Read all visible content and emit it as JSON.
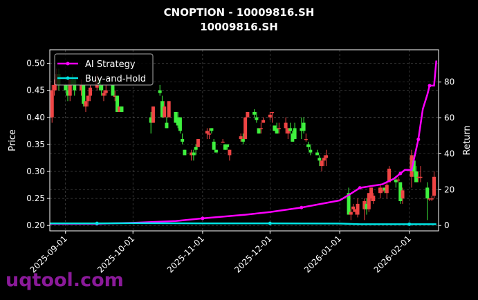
{
  "chart_data": {
    "type": "candlestick+line",
    "title": "CNOPTION - 10009816.SH",
    "subtitle": "10009816.SH",
    "ylabel": "Price",
    "y2label": "Return",
    "ylim": [
      0.19,
      0.525
    ],
    "y2lim": [
      -3,
      98
    ],
    "yticks": [
      "0.20",
      "0.25",
      "0.30",
      "0.35",
      "0.40",
      "0.45",
      "0.50"
    ],
    "y2ticks": [
      "0",
      "20",
      "40",
      "60",
      "80"
    ],
    "xticks": [
      "2025-09-01",
      "2025-10-01",
      "2025-11-01",
      "2025-12-01",
      "2026-01-01",
      "2026-02-01"
    ],
    "xlim": [
      "2025-08-25",
      "2026-02-14"
    ],
    "grid": true,
    "legend_position": "top-left",
    "colors": {
      "up": "#ef4444",
      "down": "#3ef03e",
      "ai": "#ff00ff",
      "bh": "#00e5e5"
    },
    "candles_columns": [
      "date",
      "open",
      "high",
      "low",
      "close"
    ],
    "candles": [
      [
        "2025-08-26",
        0.4,
        0.46,
        0.39,
        0.45
      ],
      [
        "2025-08-27",
        0.45,
        0.47,
        0.44,
        0.46
      ],
      [
        "2025-08-28",
        0.46,
        0.49,
        0.45,
        0.48
      ],
      [
        "2025-08-29",
        0.48,
        0.49,
        0.45,
        0.46
      ],
      [
        "2025-09-01",
        0.46,
        0.46,
        0.45,
        0.45
      ],
      [
        "2025-09-02",
        0.45,
        0.46,
        0.43,
        0.44
      ],
      [
        "2025-09-03",
        0.44,
        0.47,
        0.43,
        0.47
      ],
      [
        "2025-09-04",
        0.47,
        0.48,
        0.46,
        0.46
      ],
      [
        "2025-09-05",
        0.47,
        0.47,
        0.44,
        0.45
      ],
      [
        "2025-09-08",
        0.45,
        0.47,
        0.44,
        0.46
      ],
      [
        "2025-09-09",
        0.46,
        0.46,
        0.42,
        0.425
      ],
      [
        "2025-09-10",
        0.42,
        0.43,
        0.41,
        0.43
      ],
      [
        "2025-09-11",
        0.43,
        0.44,
        0.42,
        0.44
      ],
      [
        "2025-09-12",
        0.44,
        0.46,
        0.43,
        0.455
      ],
      [
        "2025-09-15",
        0.455,
        0.48,
        0.45,
        0.47
      ],
      [
        "2025-09-16",
        0.47,
        0.47,
        0.45,
        0.46
      ],
      [
        "2025-09-17",
        0.46,
        0.46,
        0.44,
        0.45
      ],
      [
        "2025-09-18",
        0.44,
        0.45,
        0.43,
        0.445
      ],
      [
        "2025-09-19",
        0.445,
        0.46,
        0.44,
        0.45
      ],
      [
        "2025-09-22",
        0.46,
        0.46,
        0.44,
        0.44
      ],
      [
        "2025-09-23",
        0.44,
        0.45,
        0.43,
        0.44
      ],
      [
        "2025-09-24",
        0.44,
        0.44,
        0.41,
        0.41
      ],
      [
        "2025-09-25",
        0.41,
        0.42,
        0.41,
        0.42
      ],
      [
        "2025-09-26",
        0.42,
        0.42,
        0.41,
        0.41
      ],
      [
        "2025-10-09",
        0.4,
        0.41,
        0.37,
        0.39
      ],
      [
        "2025-10-10",
        0.39,
        0.42,
        0.39,
        0.42
      ],
      [
        "2025-10-13",
        0.45,
        0.46,
        0.44,
        0.445
      ],
      [
        "2025-10-14",
        0.43,
        0.44,
        0.4,
        0.4
      ],
      [
        "2025-10-15",
        0.4,
        0.43,
        0.4,
        0.42
      ],
      [
        "2025-10-16",
        0.39,
        0.4,
        0.38,
        0.38
      ],
      [
        "2025-10-17",
        0.4,
        0.43,
        0.4,
        0.43
      ],
      [
        "2025-10-20",
        0.41,
        0.41,
        0.39,
        0.39
      ],
      [
        "2025-10-21",
        0.4,
        0.41,
        0.38,
        0.385
      ],
      [
        "2025-10-22",
        0.4,
        0.4,
        0.37,
        0.375
      ],
      [
        "2025-10-23",
        0.36,
        0.37,
        0.35,
        0.355
      ],
      [
        "2025-10-24",
        0.34,
        0.34,
        0.33,
        0.33
      ],
      [
        "2025-10-27",
        0.33,
        0.34,
        0.32,
        0.335
      ],
      [
        "2025-10-28",
        0.335,
        0.34,
        0.32,
        0.33
      ],
      [
        "2025-10-29",
        0.345,
        0.35,
        0.33,
        0.34
      ],
      [
        "2025-10-30",
        0.345,
        0.36,
        0.345,
        0.36
      ],
      [
        "2025-11-03",
        0.37,
        0.38,
        0.36,
        0.375
      ],
      [
        "2025-11-04",
        0.37,
        0.38,
        0.36,
        0.37
      ],
      [
        "2025-11-05",
        0.38,
        0.38,
        0.37,
        0.375
      ],
      [
        "2025-11-06",
        0.355,
        0.36,
        0.34,
        0.34
      ],
      [
        "2025-11-07",
        0.34,
        0.34,
        0.335,
        0.335
      ],
      [
        "2025-11-10",
        0.355,
        0.36,
        0.355,
        0.355
      ],
      [
        "2025-11-11",
        0.35,
        0.35,
        0.34,
        0.34
      ],
      [
        "2025-11-12",
        0.35,
        0.35,
        0.34,
        0.345
      ],
      [
        "2025-11-13",
        0.33,
        0.34,
        0.32,
        0.34
      ],
      [
        "2025-11-18",
        0.36,
        0.37,
        0.355,
        0.365
      ],
      [
        "2025-11-19",
        0.36,
        0.37,
        0.35,
        0.355
      ],
      [
        "2025-11-20",
        0.36,
        0.4,
        0.36,
        0.4
      ],
      [
        "2025-11-21",
        0.4,
        0.41,
        0.4,
        0.41
      ],
      [
        "2025-11-24",
        0.41,
        0.415,
        0.4,
        0.405
      ],
      [
        "2025-11-25",
        0.4,
        0.41,
        0.39,
        0.395
      ],
      [
        "2025-11-26",
        0.38,
        0.38,
        0.37,
        0.37
      ],
      [
        "2025-11-27",
        0.38,
        0.39,
        0.37,
        0.38
      ],
      [
        "2025-11-28",
        0.39,
        0.4,
        0.39,
        0.395
      ],
      [
        "2025-12-01",
        0.4,
        0.41,
        0.395,
        0.405
      ],
      [
        "2025-12-02",
        0.41,
        0.41,
        0.39,
        0.41
      ],
      [
        "2025-12-03",
        0.385,
        0.385,
        0.375,
        0.375
      ],
      [
        "2025-12-04",
        0.38,
        0.39,
        0.37,
        0.37
      ],
      [
        "2025-12-05",
        0.38,
        0.39,
        0.37,
        0.38
      ],
      [
        "2025-12-08",
        0.38,
        0.4,
        0.37,
        0.39
      ],
      [
        "2025-12-09",
        0.37,
        0.38,
        0.36,
        0.38
      ],
      [
        "2025-12-10",
        0.38,
        0.39,
        0.37,
        0.375
      ],
      [
        "2025-12-11",
        0.37,
        0.375,
        0.355,
        0.355
      ],
      [
        "2025-12-12",
        0.38,
        0.39,
        0.36,
        0.36
      ],
      [
        "2025-12-15",
        0.38,
        0.4,
        0.36,
        0.375
      ],
      [
        "2025-12-16",
        0.39,
        0.4,
        0.37,
        0.375
      ],
      [
        "2025-12-17",
        0.36,
        0.37,
        0.355,
        0.36
      ],
      [
        "2025-12-18",
        0.35,
        0.355,
        0.34,
        0.345
      ],
      [
        "2025-12-19",
        0.34,
        0.35,
        0.33,
        0.335
      ],
      [
        "2025-12-22",
        0.335,
        0.34,
        0.33,
        0.33
      ],
      [
        "2025-12-23",
        0.325,
        0.33,
        0.31,
        0.32
      ],
      [
        "2025-12-24",
        0.31,
        0.32,
        0.3,
        0.32
      ],
      [
        "2025-12-25",
        0.32,
        0.33,
        0.31,
        0.325
      ],
      [
        "2025-12-26",
        0.325,
        0.34,
        0.31,
        0.33
      ],
      [
        "2026-01-05",
        0.26,
        0.27,
        0.22,
        0.22
      ],
      [
        "2026-01-06",
        0.22,
        0.23,
        0.21,
        0.225
      ],
      [
        "2026-01-07",
        0.23,
        0.24,
        0.225,
        0.235
      ],
      [
        "2026-01-08",
        0.225,
        0.23,
        0.22,
        0.23
      ],
      [
        "2026-01-09",
        0.22,
        0.25,
        0.215,
        0.24
      ],
      [
        "2026-01-12",
        0.23,
        0.25,
        0.21,
        0.245
      ],
      [
        "2026-01-13",
        0.24,
        0.25,
        0.22,
        0.23
      ],
      [
        "2026-01-14",
        0.23,
        0.26,
        0.225,
        0.26
      ],
      [
        "2026-01-15",
        0.25,
        0.27,
        0.245,
        0.27
      ],
      [
        "2026-01-16",
        0.245,
        0.26,
        0.24,
        0.255
      ],
      [
        "2026-01-19",
        0.26,
        0.275,
        0.25,
        0.27
      ],
      [
        "2026-01-20",
        0.265,
        0.27,
        0.26,
        0.265
      ],
      [
        "2026-01-21",
        0.27,
        0.27,
        0.26,
        0.265
      ],
      [
        "2026-01-22",
        0.26,
        0.28,
        0.25,
        0.275
      ],
      [
        "2026-01-23",
        0.28,
        0.31,
        0.28,
        0.305
      ],
      [
        "2026-01-26",
        0.285,
        0.29,
        0.27,
        0.28
      ],
      [
        "2026-01-27",
        0.285,
        0.29,
        0.28,
        0.285
      ],
      [
        "2026-01-28",
        0.28,
        0.28,
        0.24,
        0.245
      ],
      [
        "2026-01-29",
        0.25,
        0.27,
        0.24,
        0.265
      ],
      [
        "2026-02-02",
        0.29,
        0.34,
        0.27,
        0.33
      ],
      [
        "2026-02-03",
        0.32,
        0.33,
        0.29,
        0.3
      ],
      [
        "2026-02-04",
        0.3,
        0.31,
        0.28,
        0.28
      ],
      [
        "2026-02-05",
        0.29,
        0.3,
        0.28,
        0.29
      ],
      [
        "2026-02-06",
        0.29,
        0.31,
        0.28,
        0.29
      ],
      [
        "2026-02-09",
        0.27,
        0.28,
        0.21,
        0.25
      ],
      [
        "2026-02-10",
        0.25,
        0.25,
        0.245,
        0.25
      ],
      [
        "2026-02-11",
        0.25,
        0.255,
        0.245,
        0.25
      ],
      [
        "2026-02-12",
        0.255,
        0.3,
        0.25,
        0.29
      ]
    ],
    "series": [
      {
        "name": "AI Strategy",
        "x": [
          "2025-08-25",
          "2025-09-15",
          "2025-10-01",
          "2025-10-20",
          "2025-11-01",
          "2025-11-20",
          "2025-12-01",
          "2025-12-15",
          "2026-01-01",
          "2026-01-05",
          "2026-01-10",
          "2026-01-20",
          "2026-01-25",
          "2026-01-28",
          "2026-01-30",
          "2026-02-02",
          "2026-02-05",
          "2026-02-07",
          "2026-02-09",
          "2026-02-10",
          "2026-02-12",
          "2026-02-13"
        ],
        "values": [
          1,
          1,
          1.5,
          2.5,
          4,
          6,
          7.5,
          10,
          14,
          17,
          21,
          23,
          26,
          29,
          31,
          31,
          48,
          65,
          73,
          78,
          78,
          92
        ]
      },
      {
        "name": "Buy-and-Hold",
        "x": [
          "2025-08-25",
          "2025-09-15",
          "2025-10-01",
          "2025-11-01",
          "2025-12-01",
          "2026-01-01",
          "2026-01-10",
          "2026-02-01",
          "2026-02-13"
        ],
        "values": [
          1.2,
          1.2,
          1.3,
          1.2,
          1.2,
          1.1,
          0.7,
          0.7,
          0.7
        ]
      }
    ]
  },
  "watermark": "uqtool.com"
}
